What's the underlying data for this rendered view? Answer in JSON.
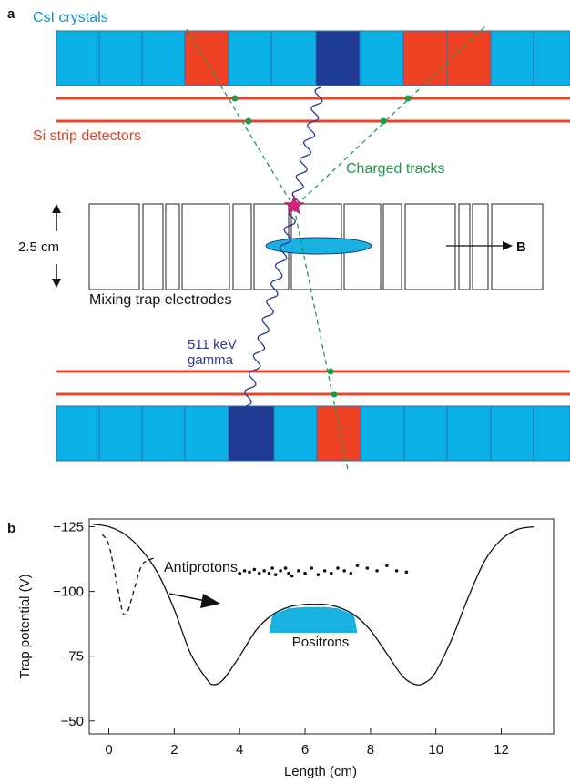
{
  "panel_a": {
    "label": "a",
    "crystals_label": "CsI crystals",
    "strips_label": "Si strip detectors",
    "tracks_label": "Charged tracks",
    "scale_label": "2.5 cm",
    "field_label": "B",
    "electrodes_label": "Mixing trap electrodes",
    "gamma_label_1": "511 keV",
    "gamma_label_2": "gamma"
  },
  "panel_b": {
    "label": "b",
    "antiprotons_label": "Antiprotons",
    "positrons_label": "Positrons"
  },
  "colors": {
    "crystal_light": "#0bb0e6",
    "crystal_dark": "#1f3a93",
    "crystal_red": "#ef4123",
    "strip_red": "#e8452a",
    "track_green": "#1f9a4e",
    "gamma_blue": "#2a3b8f",
    "annihilation_magenta": "#d6247c",
    "cloud_cyan": "#1ab2e0",
    "crystals_text": "#1a8fd0",
    "strips_text": "#e0452a",
    "tracks_text": "#1f9a4e",
    "gamma_text": "#2a3b8f"
  },
  "chart_data": {
    "type": "line",
    "xlabel": "Length (cm)",
    "ylabel": "Trap potential (V)",
    "xlim": [
      -0.6,
      13.6
    ],
    "ylim": [
      -45,
      -128
    ],
    "xticks": [
      0,
      2,
      4,
      6,
      8,
      10,
      12
    ],
    "yticks": [
      -125,
      -100,
      -75,
      -50
    ],
    "ytick_labels": [
      "−125",
      "−100",
      "−75",
      "−50"
    ],
    "series": [
      {
        "style": "solid",
        "x": [
          -0.5,
          0.0,
          0.5,
          1.0,
          1.5,
          2.0,
          2.5,
          3.0,
          3.2,
          3.5,
          4.0,
          4.5,
          5.0,
          5.5,
          6.0,
          6.3,
          6.6,
          7.0,
          7.5,
          8.0,
          8.5,
          9.0,
          9.4,
          9.7,
          10.0,
          10.5,
          11.0,
          11.5,
          12.0,
          12.5,
          13.0
        ],
        "y": [
          -126,
          -125,
          -122,
          -116,
          -107,
          -93,
          -76,
          -66,
          -64,
          -66,
          -75,
          -85,
          -91,
          -94,
          -95,
          -95,
          -95,
          -94,
          -91,
          -85,
          -76,
          -67,
          -64,
          -65,
          -69,
          -82,
          -98,
          -112,
          -120,
          -124,
          -125
        ]
      },
      {
        "style": "dashed",
        "x": [
          -0.2,
          0.0,
          0.2,
          0.4,
          0.5,
          0.6,
          0.8,
          1.0,
          1.2,
          1.4
        ],
        "y": [
          -122,
          -118,
          -106,
          -93,
          -91,
          -93,
          -102,
          -110,
          -112,
          -113
        ]
      }
    ],
    "antiproton_points": {
      "x": [
        4.0,
        4.15,
        4.3,
        4.45,
        4.6,
        4.75,
        4.9,
        5.0,
        5.1,
        5.25,
        5.4,
        5.5,
        5.6,
        5.8,
        6.0,
        6.2,
        6.4,
        6.6,
        6.8,
        7.0,
        7.2,
        7.4,
        7.6,
        7.9,
        8.2,
        8.5,
        8.8,
        9.1
      ],
      "y": [
        -107,
        -108,
        -107.5,
        -108.5,
        -107,
        -108,
        -107,
        -109,
        -106.5,
        -108,
        -109,
        -107,
        -106,
        -108,
        -107,
        -109,
        -106.5,
        -108,
        -107,
        -109,
        -108,
        -107,
        -110,
        -109,
        -108,
        -110,
        -108,
        -107.5
      ]
    },
    "positron_cloud_top_V": -94,
    "positron_cloud_bottom_V": -84
  }
}
